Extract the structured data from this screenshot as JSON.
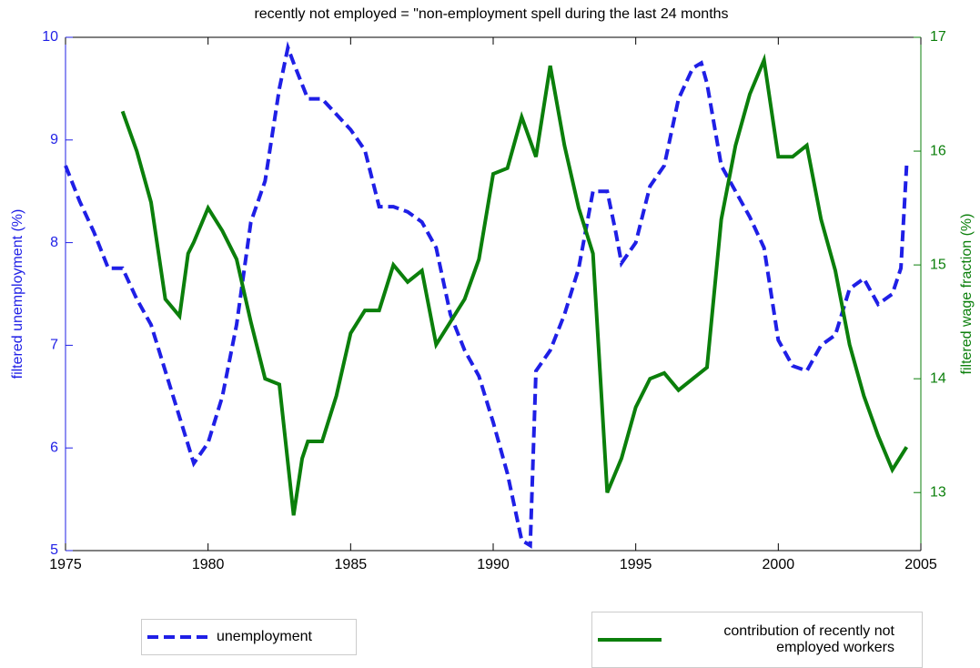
{
  "chart_data": {
    "type": "line",
    "title": "recently not employed = \"non-employment spell during the last 24 months",
    "ylabel": "filtered unemployment (%)",
    "y2label": "filtered wage fraction (%)",
    "xlim": [
      1975,
      2005
    ],
    "xticks": [
      1975,
      1980,
      1985,
      1990,
      1995,
      2000,
      2005
    ],
    "ylim": [
      5,
      10
    ],
    "yticks": [
      5,
      6,
      7,
      8,
      9,
      10
    ],
    "y2lim": [
      12.49,
      17
    ],
    "y2ticks": [
      13,
      14,
      15,
      16,
      17
    ],
    "legend": "bottom",
    "series": [
      {
        "name": "unemployment",
        "color": "#1f1fe6",
        "dash": true,
        "x": [
          1975,
          1975.5,
          1976,
          1976.5,
          1977,
          1977.5,
          1978,
          1978.5,
          1979,
          1979.5,
          1980,
          1980.5,
          1981,
          1981.5,
          1982,
          1982.5,
          1982.8,
          1983,
          1983.5,
          1984,
          1984.5,
          1985,
          1985.5,
          1986,
          1986.5,
          1987,
          1987.5,
          1988,
          1988.5,
          1989,
          1989.5,
          1990,
          1990.5,
          1991,
          1991.3,
          1991.5,
          1992,
          1992.5,
          1993,
          1993.5,
          1994,
          1994.3,
          1994.5,
          1995,
          1995.5,
          1996,
          1996.5,
          1997,
          1997.3,
          1997.5,
          1998,
          1998.5,
          1999,
          1999.5,
          2000,
          2000.5,
          2001,
          2001.5,
          2002,
          2002.5,
          2003,
          2003.5,
          2004,
          2004.3,
          2004.5
        ],
        "values": [
          8.75,
          8.4,
          8.1,
          7.75,
          7.75,
          7.45,
          7.2,
          6.75,
          6.3,
          5.85,
          6.05,
          6.5,
          7.2,
          8.2,
          8.6,
          9.5,
          9.9,
          9.75,
          9.4,
          9.4,
          9.25,
          9.1,
          8.9,
          8.35,
          8.35,
          8.3,
          8.2,
          7.95,
          7.3,
          6.95,
          6.7,
          6.25,
          5.75,
          5.1,
          5.05,
          6.75,
          6.95,
          7.3,
          7.75,
          8.5,
          8.5,
          8.1,
          7.8,
          8.0,
          8.55,
          8.75,
          9.4,
          9.7,
          9.75,
          9.55,
          8.75,
          8.5,
          8.25,
          7.95,
          7.05,
          6.8,
          6.75,
          7.0,
          7.1,
          7.55,
          7.65,
          7.4,
          7.5,
          7.75,
          8.75
        ]
      },
      {
        "name": "contribution of recently not employed workers",
        "color": "#0b7f0b",
        "axis": "y2",
        "x": [
          1977,
          1977.5,
          1978,
          1978.5,
          1979,
          1979.3,
          1979.5,
          1980,
          1980.5,
          1981,
          1981.5,
          1982,
          1982.5,
          1983,
          1983.3,
          1983.5,
          1984,
          1984.5,
          1985,
          1985.5,
          1986,
          1986.5,
          1987,
          1987.5,
          1988,
          1988.5,
          1989,
          1989.5,
          1990,
          1990.5,
          1991,
          1991.5,
          1992,
          1992.5,
          1993,
          1993.5,
          1994,
          1994.5,
          1995,
          1995.5,
          1996,
          1996.5,
          1997,
          1997.5,
          1998,
          1998.5,
          1999,
          1999.5,
          2000,
          2000.5,
          2001,
          2001.5,
          2002,
          2002.5,
          2003,
          2003.5,
          2004,
          2004.5
        ],
        "values": [
          16.35,
          16.0,
          15.55,
          14.7,
          14.55,
          15.1,
          15.2,
          15.5,
          15.3,
          15.05,
          14.5,
          14.0,
          13.95,
          12.8,
          13.3,
          13.45,
          13.45,
          13.85,
          14.4,
          14.6,
          14.6,
          15.0,
          14.85,
          14.95,
          14.3,
          14.5,
          14.7,
          15.05,
          15.8,
          15.85,
          16.3,
          15.95,
          16.75,
          16.05,
          15.5,
          15.1,
          13.0,
          13.3,
          13.75,
          14.0,
          14.05,
          13.9,
          14.0,
          14.1,
          15.4,
          16.05,
          16.5,
          16.8,
          15.95,
          15.95,
          16.05,
          15.4,
          14.95,
          14.3,
          13.85,
          13.5,
          13.2,
          13.4
        ]
      }
    ]
  }
}
